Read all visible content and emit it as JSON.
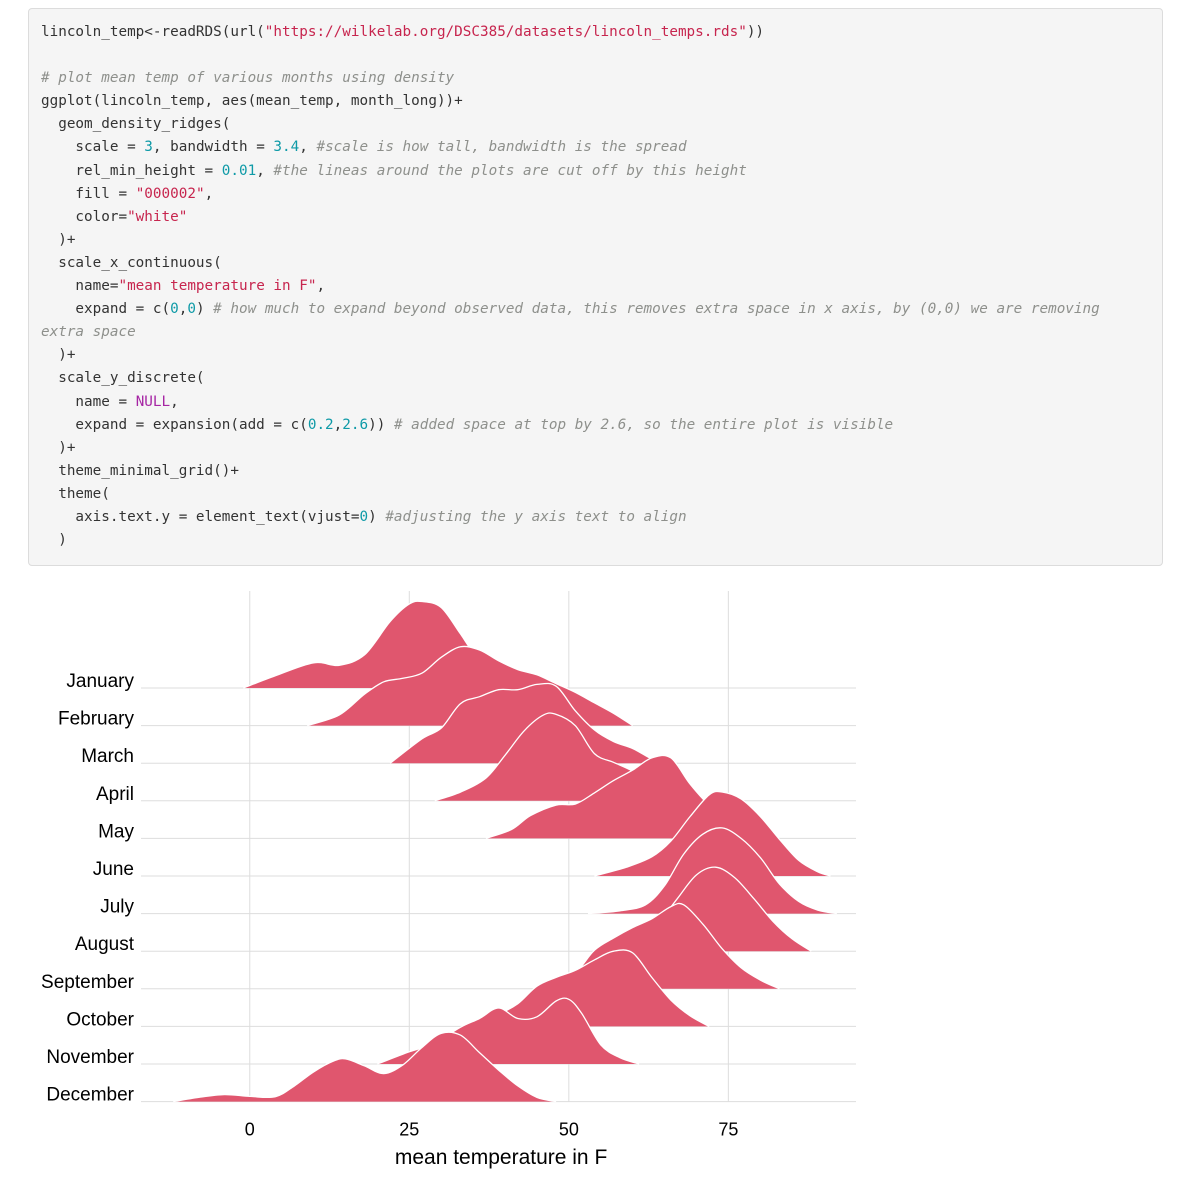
{
  "code": {
    "lines": [
      [
        {
          "t": "txt",
          "v": "lincoln_temp<-readRDS(url("
        },
        {
          "t": "str",
          "v": "\"https://wilkelab.org/DSC385/datasets/lincoln_temps.rds\""
        },
        {
          "t": "txt",
          "v": "))"
        }
      ],
      [],
      [
        {
          "t": "cmt",
          "v": "# plot mean temp of various months using density"
        }
      ],
      [
        {
          "t": "txt",
          "v": "ggplot(lincoln_temp, aes(mean_temp, month_long))+"
        }
      ],
      [
        {
          "t": "txt",
          "v": "  geom_density_ridges("
        }
      ],
      [
        {
          "t": "txt",
          "v": "    scale = "
        },
        {
          "t": "num",
          "v": "3"
        },
        {
          "t": "txt",
          "v": ", bandwidth = "
        },
        {
          "t": "num",
          "v": "3.4"
        },
        {
          "t": "txt",
          "v": ", "
        },
        {
          "t": "cmt",
          "v": "#scale is how tall, bandwidth is the spread"
        }
      ],
      [
        {
          "t": "txt",
          "v": "    rel_min_height = "
        },
        {
          "t": "num",
          "v": "0.01"
        },
        {
          "t": "txt",
          "v": ", "
        },
        {
          "t": "cmt",
          "v": "#the lineas around the plots are cut off by this height"
        }
      ],
      [
        {
          "t": "txt",
          "v": "    fill = "
        },
        {
          "t": "str",
          "v": "\"000002\""
        },
        {
          "t": "txt",
          "v": ","
        }
      ],
      [
        {
          "t": "txt",
          "v": "    color="
        },
        {
          "t": "str",
          "v": "\"white\""
        }
      ],
      [
        {
          "t": "txt",
          "v": "  )+"
        }
      ],
      [
        {
          "t": "txt",
          "v": "  scale_x_continuous("
        }
      ],
      [
        {
          "t": "txt",
          "v": "    name="
        },
        {
          "t": "str",
          "v": "\"mean temperature in F\""
        },
        {
          "t": "txt",
          "v": ","
        }
      ],
      [
        {
          "t": "txt",
          "v": "    expand = c("
        },
        {
          "t": "num",
          "v": "0"
        },
        {
          "t": "txt",
          "v": ","
        },
        {
          "t": "num",
          "v": "0"
        },
        {
          "t": "txt",
          "v": ") "
        },
        {
          "t": "cmt",
          "v": "# how much to expand beyond observed data, this removes extra space in x axis, by (0,0) we are removing"
        }
      ],
      [
        {
          "t": "cmt",
          "v": "extra space"
        }
      ],
      [
        {
          "t": "txt",
          "v": "  )+"
        }
      ],
      [
        {
          "t": "txt",
          "v": "  scale_y_discrete("
        }
      ],
      [
        {
          "t": "txt",
          "v": "    name = "
        },
        {
          "t": "kw",
          "v": "NULL"
        },
        {
          "t": "txt",
          "v": ","
        }
      ],
      [
        {
          "t": "txt",
          "v": "    expand = expansion(add = c("
        },
        {
          "t": "num",
          "v": "0.2"
        },
        {
          "t": "txt",
          "v": ","
        },
        {
          "t": "num",
          "v": "2.6"
        },
        {
          "t": "txt",
          "v": ")) "
        },
        {
          "t": "cmt",
          "v": "# added space at top by 2.6, so the entire plot is visible"
        }
      ],
      [
        {
          "t": "txt",
          "v": "  )+"
        }
      ],
      [
        {
          "t": "txt",
          "v": "  theme_minimal_grid()+"
        }
      ],
      [
        {
          "t": "txt",
          "v": "  theme("
        }
      ],
      [
        {
          "t": "txt",
          "v": "    axis.text.y = element_text(vjust="
        },
        {
          "t": "num",
          "v": "0"
        },
        {
          "t": "txt",
          "v": ") "
        },
        {
          "t": "cmt",
          "v": "#adjusting the y axis text to align"
        }
      ],
      [
        {
          "t": "txt",
          "v": "  )"
        }
      ]
    ]
  },
  "chart_data": {
    "type": "ridgeline",
    "xlabel": "mean temperature in F",
    "ylabel": "",
    "xlim": [
      -12.5,
      95
    ],
    "xticks": [
      0,
      25,
      50,
      75
    ],
    "grid": true,
    "fill_color": "#e0566e",
    "line_color": "#ffffff",
    "categories": [
      "January",
      "February",
      "March",
      "April",
      "May",
      "June",
      "July",
      "August",
      "September",
      "October",
      "November",
      "December"
    ],
    "series": [
      {
        "name": "January",
        "points": [
          [
            -1,
            0
          ],
          [
            4,
            0.35
          ],
          [
            10,
            0.72
          ],
          [
            14,
            0.65
          ],
          [
            18,
            0.95
          ],
          [
            22,
            1.9
          ],
          [
            25,
            2.4
          ],
          [
            27,
            2.47
          ],
          [
            30,
            2.3
          ],
          [
            33,
            1.55
          ],
          [
            35,
            1.05
          ],
          [
            38,
            0.75
          ],
          [
            41,
            0.45
          ],
          [
            44,
            0.12
          ],
          [
            47,
            0
          ]
        ]
      },
      {
        "name": "February",
        "points": [
          [
            9,
            0
          ],
          [
            14,
            0.3
          ],
          [
            18,
            0.9
          ],
          [
            21,
            1.25
          ],
          [
            24,
            1.35
          ],
          [
            27,
            1.5
          ],
          [
            30,
            1.95
          ],
          [
            33,
            2.25
          ],
          [
            36,
            2.16
          ],
          [
            39,
            1.85
          ],
          [
            42,
            1.6
          ],
          [
            45,
            1.45
          ],
          [
            48,
            1.2
          ],
          [
            51,
            0.95
          ],
          [
            54,
            0.65
          ],
          [
            57,
            0.35
          ],
          [
            60,
            0
          ]
        ]
      },
      {
        "name": "March",
        "points": [
          [
            22,
            0
          ],
          [
            27,
            0.7
          ],
          [
            30,
            1.0
          ],
          [
            33,
            1.7
          ],
          [
            36,
            1.9
          ],
          [
            39,
            2.1
          ],
          [
            42,
            2.1
          ],
          [
            45,
            2.25
          ],
          [
            48,
            2.2
          ],
          [
            51,
            1.5
          ],
          [
            54,
            0.95
          ],
          [
            57,
            0.62
          ],
          [
            60,
            0.42
          ],
          [
            63,
            0.12
          ],
          [
            65,
            0
          ]
        ]
      },
      {
        "name": "April",
        "points": [
          [
            29,
            0
          ],
          [
            33,
            0.25
          ],
          [
            37,
            0.65
          ],
          [
            40,
            1.3
          ],
          [
            43,
            2.0
          ],
          [
            46,
            2.45
          ],
          [
            48,
            2.47
          ],
          [
            51,
            2.15
          ],
          [
            54,
            1.35
          ],
          [
            57,
            1.1
          ],
          [
            60,
            0.85
          ],
          [
            63,
            0.52
          ],
          [
            66,
            0.1
          ],
          [
            68,
            0
          ]
        ]
      },
      {
        "name": "May",
        "points": [
          [
            37,
            0
          ],
          [
            41,
            0.25
          ],
          [
            44,
            0.65
          ],
          [
            48,
            0.95
          ],
          [
            51,
            0.98
          ],
          [
            54,
            1.3
          ],
          [
            57,
            1.65
          ],
          [
            60,
            1.95
          ],
          [
            63,
            2.3
          ],
          [
            66,
            2.3
          ],
          [
            69,
            1.55
          ],
          [
            72,
            0.95
          ],
          [
            75,
            0.55
          ],
          [
            78,
            0.2
          ],
          [
            80,
            0
          ]
        ]
      },
      {
        "name": "June",
        "points": [
          [
            54,
            0
          ],
          [
            59,
            0.25
          ],
          [
            63,
            0.55
          ],
          [
            66,
            1.0
          ],
          [
            69,
            1.7
          ],
          [
            72,
            2.32
          ],
          [
            74,
            2.4
          ],
          [
            77,
            2.2
          ],
          [
            80,
            1.7
          ],
          [
            83,
            1.05
          ],
          [
            86,
            0.45
          ],
          [
            89,
            0.12
          ],
          [
            91,
            0
          ]
        ]
      },
      {
        "name": "July",
        "points": [
          [
            53,
            0
          ],
          [
            58,
            0.08
          ],
          [
            62,
            0.25
          ],
          [
            65,
            0.8
          ],
          [
            68,
            1.7
          ],
          [
            71,
            2.27
          ],
          [
            74,
            2.45
          ],
          [
            77,
            2.15
          ],
          [
            80,
            1.6
          ],
          [
            83,
            0.85
          ],
          [
            86,
            0.35
          ],
          [
            89,
            0.1
          ],
          [
            92,
            0
          ]
        ]
      },
      {
        "name": "August",
        "points": [
          [
            56,
            0
          ],
          [
            61,
            0.3
          ],
          [
            64,
            0.8
          ],
          [
            67,
            1.5
          ],
          [
            70,
            2.18
          ],
          [
            73,
            2.4
          ],
          [
            76,
            2.1
          ],
          [
            79,
            1.5
          ],
          [
            82,
            0.85
          ],
          [
            85,
            0.35
          ],
          [
            88,
            0
          ]
        ]
      },
      {
        "name": "September",
        "points": [
          [
            47,
            0
          ],
          [
            51,
            0.45
          ],
          [
            54,
            1.1
          ],
          [
            57,
            1.45
          ],
          [
            60,
            1.75
          ],
          [
            63,
            2.0
          ],
          [
            66,
            2.35
          ],
          [
            68,
            2.4
          ],
          [
            71,
            1.85
          ],
          [
            74,
            1.15
          ],
          [
            77,
            0.6
          ],
          [
            80,
            0.25
          ],
          [
            83,
            0
          ]
        ]
      },
      {
        "name": "October",
        "points": [
          [
            34,
            0
          ],
          [
            39,
            0.35
          ],
          [
            42,
            0.65
          ],
          [
            45,
            1.15
          ],
          [
            48,
            1.4
          ],
          [
            51,
            1.6
          ],
          [
            54,
            1.9
          ],
          [
            57,
            2.15
          ],
          [
            60,
            2.1
          ],
          [
            63,
            1.4
          ],
          [
            66,
            0.75
          ],
          [
            69,
            0.3
          ],
          [
            72,
            0
          ]
        ]
      },
      {
        "name": "November",
        "points": [
          [
            20,
            0
          ],
          [
            25,
            0.35
          ],
          [
            29,
            0.6
          ],
          [
            33,
            1.05
          ],
          [
            36,
            1.3
          ],
          [
            39,
            1.6
          ],
          [
            42,
            1.3
          ],
          [
            45,
            1.35
          ],
          [
            48,
            1.8
          ],
          [
            50,
            1.85
          ],
          [
            52,
            1.45
          ],
          [
            55,
            0.55
          ],
          [
            58,
            0.18
          ],
          [
            61,
            0
          ]
        ]
      },
      {
        "name": "December",
        "points": [
          [
            -12,
            0
          ],
          [
            -8,
            0.12
          ],
          [
            -4,
            0.2
          ],
          [
            0,
            0.15
          ],
          [
            4,
            0.14
          ],
          [
            7,
            0.45
          ],
          [
            10,
            0.85
          ],
          [
            13,
            1.15
          ],
          [
            15,
            1.22
          ],
          [
            18,
            1.02
          ],
          [
            21,
            0.8
          ],
          [
            24,
            1.05
          ],
          [
            27,
            1.55
          ],
          [
            30,
            1.95
          ],
          [
            33,
            1.9
          ],
          [
            36,
            1.4
          ],
          [
            39,
            0.9
          ],
          [
            42,
            0.45
          ],
          [
            45,
            0.12
          ],
          [
            48,
            0
          ]
        ]
      }
    ]
  }
}
